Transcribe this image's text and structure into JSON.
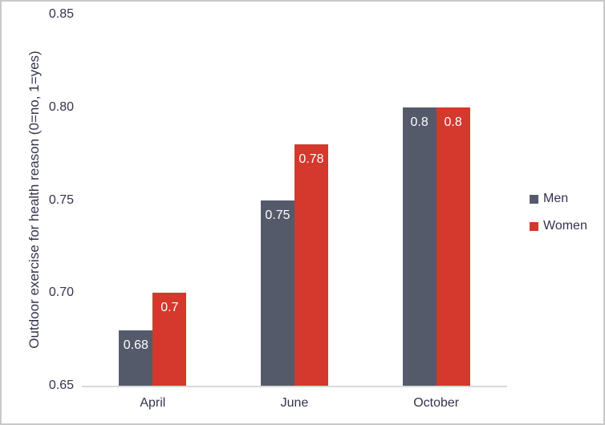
{
  "window": {
    "background": "#ffffff",
    "border_color": "#c9c9c9"
  },
  "chart_data": {
    "type": "bar",
    "title": "",
    "categories": [
      "April",
      "June",
      "October"
    ],
    "series": [
      {
        "name": "Men",
        "color": "#555a6b",
        "values": [
          0.68,
          0.75,
          0.8
        ],
        "labels": [
          "0.68",
          "0.75",
          "0.8"
        ]
      },
      {
        "name": "Women",
        "color": "#d5382c",
        "values": [
          0.7,
          0.78,
          0.8
        ],
        "labels": [
          "0.7",
          "0.78",
          "0.8"
        ]
      }
    ],
    "xlabel": "",
    "ylabel": "Outdoor exercise for health reason (0=no, 1=yes)",
    "ylim": [
      0.65,
      0.85
    ],
    "yticks": [
      0.85,
      0.8,
      0.75,
      0.7,
      0.65
    ],
    "ytick_labels": [
      "0.85",
      "0.80",
      "0.75",
      "0.70",
      "0.65"
    ],
    "grid": false,
    "legend_position": "right",
    "colors": {
      "text": "#33334d",
      "axis_line": "#d9d9d9",
      "data_label": "#ffffff"
    }
  }
}
